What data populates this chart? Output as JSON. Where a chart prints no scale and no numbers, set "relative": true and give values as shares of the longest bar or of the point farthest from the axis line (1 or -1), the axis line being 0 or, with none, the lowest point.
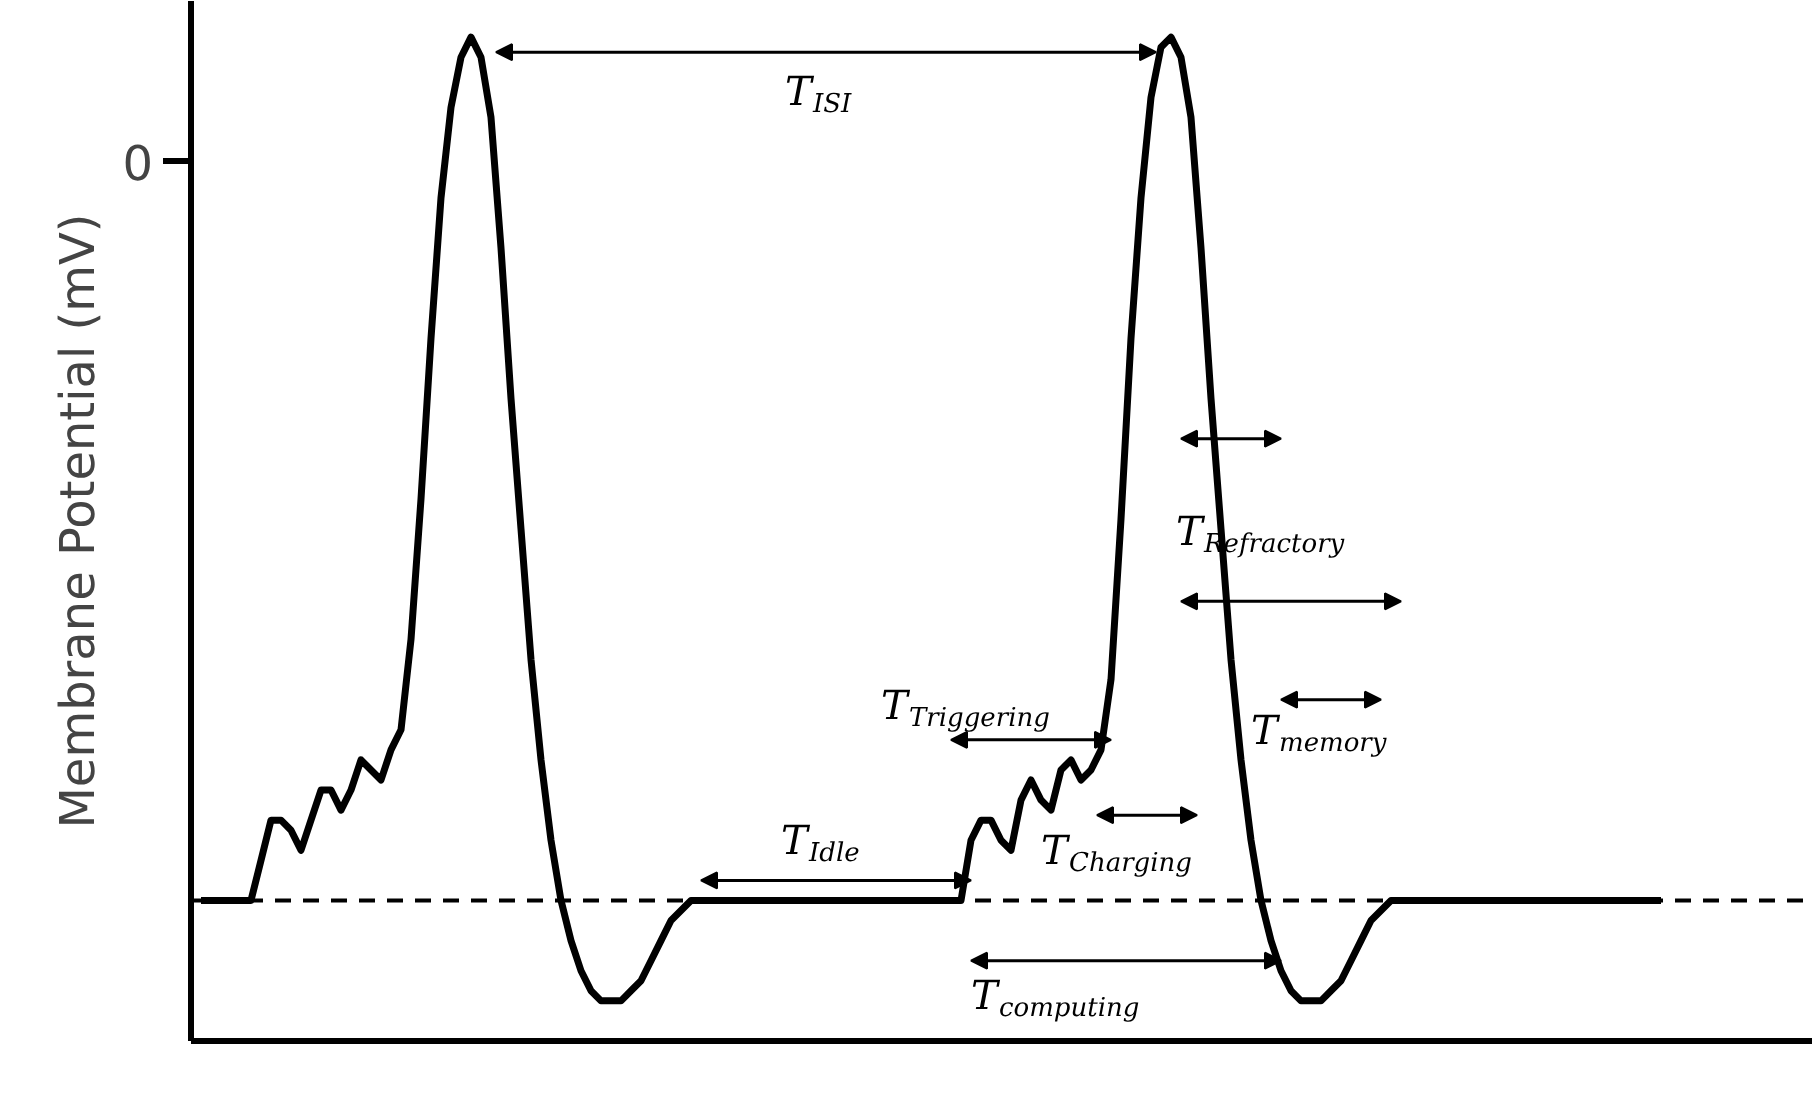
{
  "chart_data": {
    "type": "line",
    "relative": true,
    "ylabel": "Membrane Potential (mV)",
    "grid": false,
    "marker": "none",
    "line_style": "solid",
    "categories": [
      null,
      null,
      null,
      null,
      null,
      null,
      null,
      null,
      null,
      null,
      null,
      null,
      null,
      null,
      null,
      null,
      null,
      null,
      null,
      null,
      null,
      null,
      null,
      null,
      null,
      null,
      null,
      null,
      null,
      null,
      null,
      null,
      null,
      null,
      null,
      null,
      null,
      null,
      null,
      null,
      null,
      null,
      null,
      null,
      null,
      null,
      null,
      null,
      null,
      null,
      null,
      null,
      null,
      null,
      null,
      null,
      null,
      null,
      null,
      null,
      null,
      null,
      null,
      null,
      null,
      null,
      null,
      null,
      null,
      null,
      null,
      null,
      null,
      null,
      null,
      null,
      null,
      null,
      null,
      null,
      null,
      null,
      null,
      null,
      null,
      null,
      null,
      null,
      null,
      null,
      null,
      null,
      null,
      null,
      null,
      null,
      null,
      null,
      null,
      null,
      null,
      null,
      null,
      null,
      null,
      null,
      null,
      null,
      null,
      null,
      null,
      null,
      null,
      null,
      null,
      null,
      null,
      null,
      null,
      null,
      null,
      null,
      null,
      null,
      null,
      null,
      null,
      null,
      null,
      null,
      null,
      null,
      null,
      null,
      null,
      null,
      null,
      null,
      null,
      null,
      null,
      null,
      null,
      null,
      null,
      null,
      null
    ],
    "series": [
      {
        "color": "#000000",
        "values": [
          0.14,
          0.14,
          0.14,
          0.14,
          0.14,
          0.14,
          0.18,
          0.22,
          0.22,
          0.21,
          0.19,
          0.22,
          0.25,
          0.25,
          0.23,
          0.25,
          0.28,
          0.27,
          0.26,
          0.29,
          0.31,
          0.4,
          0.54,
          0.7,
          0.84,
          0.93,
          0.98,
          1.0,
          0.98,
          0.92,
          0.79,
          0.64,
          0.51,
          0.38,
          0.28,
          0.2,
          0.14,
          0.1,
          0.07,
          0.05,
          0.04,
          0.04,
          0.04,
          0.05,
          0.06,
          0.08,
          0.1,
          0.12,
          0.13,
          0.14,
          0.14,
          0.14,
          0.14,
          0.14,
          0.14,
          0.14,
          0.14,
          0.14,
          0.14,
          0.14,
          0.14,
          0.14,
          0.14,
          0.14,
          0.14,
          0.14,
          0.14,
          0.14,
          0.14,
          0.14,
          0.14,
          0.14,
          0.14,
          0.14,
          0.14,
          0.14,
          0.14,
          0.2,
          0.22,
          0.22,
          0.2,
          0.19,
          0.24,
          0.26,
          0.24,
          0.23,
          0.27,
          0.28,
          0.26,
          0.27,
          0.29,
          0.36,
          0.52,
          0.7,
          0.84,
          0.94,
          0.99,
          1.0,
          0.98,
          0.92,
          0.79,
          0.64,
          0.51,
          0.38,
          0.28,
          0.2,
          0.14,
          0.1,
          0.07,
          0.05,
          0.04,
          0.04,
          0.04,
          0.05,
          0.06,
          0.08,
          0.1,
          0.12,
          0.13,
          0.14,
          0.14,
          0.14,
          0.14,
          0.14,
          0.14,
          0.14,
          0.14,
          0.14,
          0.14,
          0.14,
          0.14,
          0.14,
          0.14,
          0.14,
          0.14,
          0.14,
          0.14,
          0.14,
          0.14,
          0.14,
          0.14,
          0.14,
          0.14,
          0.14,
          0.14,
          0.14,
          0.14
        ]
      }
    ],
    "ref_lines": [
      {
        "axis": "y",
        "value": 0.14,
        "line_style": "dashed",
        "color": "#000000"
      }
    ],
    "annotations": [
      "0",
      "T$_{ISI}$",
      "T$_{Refractory}$",
      "T$_{Triggering}$",
      "T$_{memory}$",
      "T$_{Idle}$",
      "T$_{Charging}$",
      "T$_{computing}$"
    ]
  }
}
